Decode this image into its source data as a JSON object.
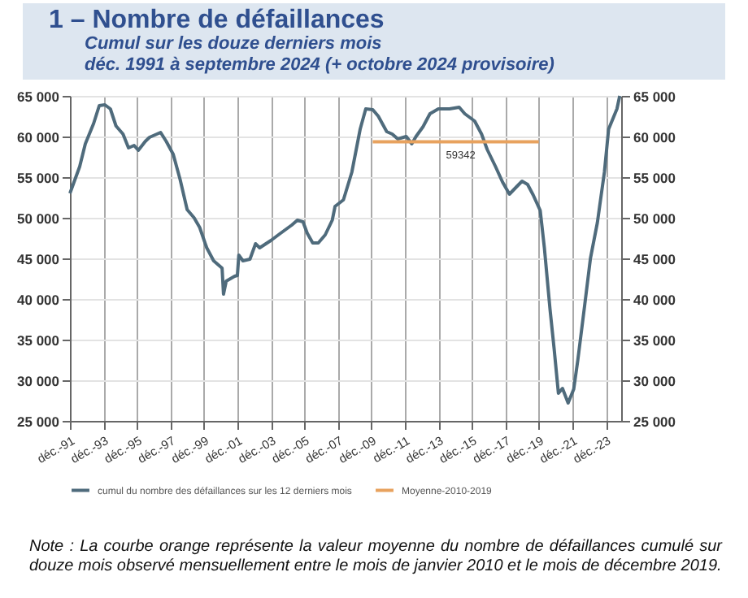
{
  "chart_data": {
    "type": "line",
    "title": "1 – Nombre de défaillances",
    "subtitle": "Cumul sur les douze derniers mois\ndéc. 1991 à septembre 2024 (+ octobre 2024 provisoire)",
    "series": [
      {
        "name": "cumul du nombre des défaillances sur les 12 derniers mois",
        "color": "#4f6b7c",
        "x": [
          "1991-12",
          "1992-07",
          "1992-11",
          "1993-05",
          "1993-09",
          "1994-01",
          "1994-05",
          "1994-09",
          "1995-02",
          "1995-06",
          "1995-10",
          "1996-01",
          "1996-06",
          "1996-09",
          "1997-05",
          "1997-09",
          "1998-02",
          "1998-07",
          "1998-12",
          "1999-05",
          "1999-09",
          "2000-02",
          "2000-07",
          "2000-11",
          "2001-01",
          "2001-02",
          "2001-04",
          "2001-10",
          "2001-12",
          "2002-01",
          "2002-04",
          "2002-09",
          "2003-01",
          "2003-04",
          "2003-12",
          "2004-07",
          "2005-03",
          "2005-07",
          "2005-11",
          "2006-02",
          "2006-06",
          "2006-10",
          "2007-03",
          "2007-08",
          "2007-10",
          "2008-04",
          "2008-10",
          "2009-04",
          "2009-08",
          "2010-01",
          "2010-05",
          "2010-11",
          "2011-03",
          "2011-07",
          "2012-01",
          "2012-05",
          "2012-08",
          "2013-01",
          "2013-06",
          "2013-12",
          "2014-08",
          "2015-03",
          "2015-07",
          "2016-02",
          "2016-07",
          "2016-11",
          "2017-05",
          "2017-10",
          "2018-03",
          "2018-08",
          "2018-12",
          "2019-04",
          "2019-08",
          "2020-01",
          "2020-04",
          "2020-08",
          "2020-11",
          "2021-02",
          "2021-05",
          "2021-09",
          "2022-01",
          "2022-04",
          "2022-09",
          "2023-01",
          "2023-06",
          "2023-11",
          "2024-02",
          "2024-08",
          "2024-10"
        ],
        "values": [
          53000,
          56300,
          59100,
          61600,
          63800,
          63900,
          63400,
          61300,
          60300,
          58600,
          58900,
          58300,
          59400,
          59900,
          60500,
          59400,
          57800,
          54700,
          51000,
          50000,
          48800,
          46300,
          44700,
          44100,
          43800,
          40600,
          42200,
          42800,
          42900,
          45400,
          44700,
          44900,
          46800,
          46300,
          47200,
          48100,
          49100,
          49700,
          49500,
          48100,
          46900,
          46900,
          47900,
          49700,
          51400,
          52200,
          55600,
          60900,
          63400,
          63300,
          62500,
          60600,
          60300,
          59700,
          60000,
          59100,
          60000,
          61200,
          62800,
          63400,
          63400,
          63600,
          62800,
          61900,
          60300,
          58400,
          56300,
          54400,
          52900,
          53800,
          54500,
          54100,
          52800,
          50900,
          46300,
          38800,
          33800,
          28400,
          29000,
          27200,
          28900,
          32500,
          39400,
          45000,
          49400,
          55600,
          60900,
          63400,
          65000
        ]
      },
      {
        "name": "Moyenne-2010-2019",
        "color": "#e8a25e",
        "x": [
          "2010-01",
          "2019-12"
        ],
        "values": [
          59342,
          59342
        ]
      }
    ],
    "annotations": [
      {
        "text": "59342",
        "x": "2015-04",
        "y": 59342
      },
      "Note : La courbe orange représente la valeur moyenne du nombre de défaillances cumulé sur douze mois observé mensuellement entre le mois de janvier 2010 et le mois de décembre 2019."
    ],
    "xlim": [
      "1991-12",
      "2024-11"
    ],
    "xticks": [
      {
        "value": "1991-12",
        "label": "déc.-91"
      },
      {
        "value": "1993-12",
        "label": "déc.-93"
      },
      {
        "value": "1995-12",
        "label": "déc.-95"
      },
      {
        "value": "1997-12",
        "label": "déc.-97"
      },
      {
        "value": "1999-12",
        "label": "déc.-99"
      },
      {
        "value": "2001-12",
        "label": "déc.-01"
      },
      {
        "value": "2003-12",
        "label": "déc.-03"
      },
      {
        "value": "2005-12",
        "label": "déc.-05"
      },
      {
        "value": "2007-12",
        "label": "déc.-07"
      },
      {
        "value": "2009-12",
        "label": "déc.-09"
      },
      {
        "value": "2011-12",
        "label": "déc.-11"
      },
      {
        "value": "2013-12",
        "label": "déc.-13"
      },
      {
        "value": "2015-12",
        "label": "déc.-15"
      },
      {
        "value": "2017-12",
        "label": "déc.-17"
      },
      {
        "value": "2019-12",
        "label": "déc.-19"
      },
      {
        "value": "2021-12",
        "label": "déc.-21"
      },
      {
        "value": "2023-12",
        "label": "déc.-23"
      }
    ],
    "ylim": [
      25000,
      65000
    ],
    "yticks": [
      {
        "value": 25000,
        "label": "25 000"
      },
      {
        "value": 30000,
        "label": "30 000"
      },
      {
        "value": 35000,
        "label": "35 000"
      },
      {
        "value": 40000,
        "label": "40 000"
      },
      {
        "value": 45000,
        "label": "45 000"
      },
      {
        "value": 50000,
        "label": "50 000"
      },
      {
        "value": 55000,
        "label": "55 000"
      },
      {
        "value": 60000,
        "label": "60 000"
      },
      {
        "value": 65000,
        "label": "65 000"
      }
    ],
    "y2lim": [
      25000,
      65000
    ],
    "y2ticks": [
      {
        "value": 25000,
        "label": "25 000"
      },
      {
        "value": 30000,
        "label": "30 000"
      },
      {
        "value": 35000,
        "label": "35 000"
      },
      {
        "value": 40000,
        "label": "40 000"
      },
      {
        "value": 45000,
        "label": "45 000"
      },
      {
        "value": 50000,
        "label": "50 000"
      },
      {
        "value": 55000,
        "label": "55 000"
      },
      {
        "value": 60000,
        "label": "60 000"
      },
      {
        "value": 65000,
        "label": "65 000"
      }
    ],
    "grid": true,
    "legend": "bottom"
  }
}
